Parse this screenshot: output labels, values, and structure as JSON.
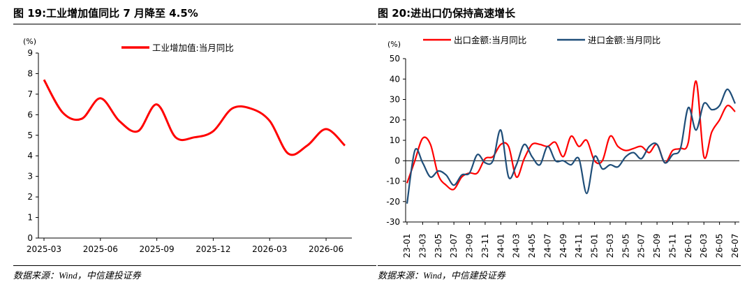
{
  "left": {
    "title": "图 19:工业增加值同比 7 月降至 4.5%",
    "source": "数据来源：Wind，中信建投证券",
    "chart_data": {
      "type": "line",
      "unit_label": "(%)",
      "ylim": [
        0,
        9
      ],
      "yticks": [
        "0",
        "1",
        "2",
        "3",
        "4",
        "5",
        "6",
        "7",
        "8",
        "9"
      ],
      "xticks": [
        "2025-03",
        "2025-06",
        "2025-09",
        "2025-12",
        "2026-03",
        "2026-06"
      ],
      "x_index_range": [
        0,
        16
      ],
      "grid": false,
      "legend": "top",
      "series": [
        {
          "name": "工业增加值:当月同比",
          "color": "#ff0000",
          "points": [
            [
              0,
              7.7
            ],
            [
              1,
              6.1
            ],
            [
              2,
              5.8
            ],
            [
              3,
              6.8
            ],
            [
              4,
              5.7
            ],
            [
              5,
              5.2
            ],
            [
              6,
              6.5
            ],
            [
              7,
              4.9
            ],
            [
              8,
              4.9
            ],
            [
              9,
              5.2
            ],
            [
              10,
              6.3
            ],
            [
              11,
              6.3
            ],
            [
              12,
              5.7
            ],
            [
              13,
              4.1
            ],
            [
              14,
              4.5
            ],
            [
              15,
              5.3
            ],
            [
              16,
              4.5
            ]
          ]
        }
      ]
    }
  },
  "right": {
    "title": "图 20:进出口仍保持高速增长",
    "source": "数据来源：Wind，中信建投证券",
    "chart_data": {
      "type": "line",
      "unit_label": "(%)",
      "ylim": [
        -30,
        50
      ],
      "yticks": [
        "-30",
        "-20",
        "-10",
        "0",
        "10",
        "20",
        "30",
        "40",
        "50"
      ],
      "categories": [
        "23-01",
        "23-02",
        "23-03",
        "23-04",
        "23-05",
        "23-06",
        "23-07",
        "23-08",
        "23-09",
        "23-10",
        "23-11",
        "23-12",
        "24-01",
        "24-02",
        "24-03",
        "24-04",
        "24-05",
        "24-06",
        "24-07",
        "24-08",
        "24-09",
        "24-10",
        "24-11",
        "24-12",
        "25-01",
        "25-02",
        "25-03",
        "25-04",
        "25-05",
        "25-06",
        "25-07",
        "25-08",
        "25-09",
        "25-10",
        "25-11",
        "25-12",
        "26-01",
        "26-02",
        "26-03",
        "26-04",
        "26-05",
        "26-06",
        "26-07"
      ],
      "xtick_labels": [
        "23-01",
        "23-03",
        "23-05",
        "23-07",
        "23-09",
        "23-11",
        "24-01",
        "24-03",
        "24-05",
        "24-07",
        "24-09",
        "24-11",
        "25-01",
        "25-03",
        "25-05",
        "25-07",
        "25-09",
        "25-11",
        "26-01",
        "26-03",
        "26-05",
        "26-07"
      ],
      "grid": false,
      "legend": "top",
      "series": [
        {
          "name": "出口金额:当月同比",
          "color": "#ff0000",
          "values": [
            -11,
            0,
            11,
            8,
            -7,
            -12,
            -14,
            -8,
            -6,
            -6,
            1,
            2,
            8,
            7,
            -8,
            1,
            8,
            8,
            7,
            9,
            2,
            12,
            7,
            10,
            0,
            0,
            12,
            7,
            5,
            6,
            7,
            4,
            8,
            -1,
            5,
            6,
            9,
            39,
            2,
            14,
            20,
            27,
            24
          ]
        },
        {
          "name": "进口金额:当月同比",
          "color": "#1f4e79",
          "values": [
            -21,
            5,
            -1,
            -8,
            -5,
            -7,
            -12,
            -7,
            -6,
            3,
            -1,
            0,
            15,
            -8,
            -2,
            8,
            2,
            -2,
            7,
            0,
            0,
            -2,
            1,
            -16,
            2,
            -4,
            -2,
            -3,
            2,
            4,
            1,
            7,
            8,
            -1,
            3,
            6,
            26,
            15,
            28,
            25,
            27,
            35,
            28
          ]
        }
      ]
    }
  }
}
